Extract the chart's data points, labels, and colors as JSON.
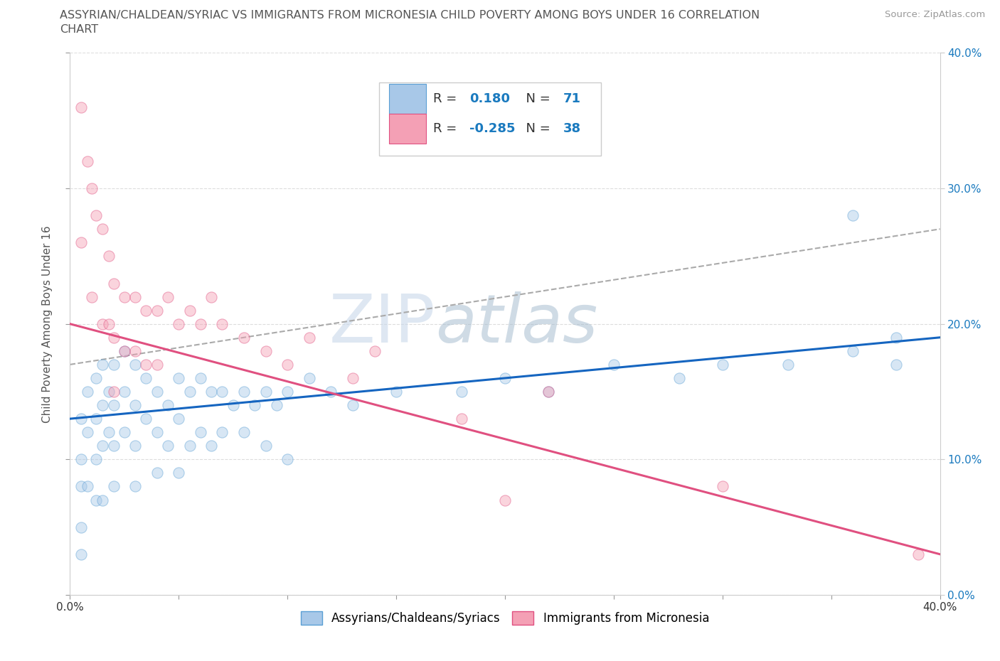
{
  "title_line1": "ASSYRIAN/CHALDEAN/SYRIAC VS IMMIGRANTS FROM MICRONESIA CHILD POVERTY AMONG BOYS UNDER 16 CORRELATION",
  "title_line2": "CHART",
  "source_text": "Source: ZipAtlas.com",
  "ylabel": "Child Poverty Among Boys Under 16",
  "xlim": [
    0.0,
    0.4
  ],
  "ylim": [
    0.0,
    0.4
  ],
  "xticks": [
    0.0,
    0.05,
    0.1,
    0.15,
    0.2,
    0.25,
    0.3,
    0.35,
    0.4
  ],
  "yticks": [
    0.0,
    0.1,
    0.2,
    0.3,
    0.4
  ],
  "xtick_labels_bottom": [
    "0.0%",
    "",
    "",
    "",
    "",
    "",
    "",
    "",
    "40.0%"
  ],
  "ytick_labels_left": [
    "",
    "",
    "",
    "",
    ""
  ],
  "ytick_labels_right": [
    "0.0%",
    "10.0%",
    "20.0%",
    "30.0%",
    "40.0%"
  ],
  "blue_series": {
    "label": "Assyrians/Chaldeans/Syriacs",
    "R": 0.18,
    "N": 71,
    "color": "#a8c8e8",
    "edge_color": "#5a9fd4",
    "x": [
      0.005,
      0.005,
      0.005,
      0.005,
      0.005,
      0.008,
      0.008,
      0.008,
      0.012,
      0.012,
      0.012,
      0.012,
      0.015,
      0.015,
      0.015,
      0.015,
      0.018,
      0.018,
      0.02,
      0.02,
      0.02,
      0.02,
      0.025,
      0.025,
      0.025,
      0.03,
      0.03,
      0.03,
      0.03,
      0.035,
      0.035,
      0.04,
      0.04,
      0.04,
      0.045,
      0.045,
      0.05,
      0.05,
      0.05,
      0.055,
      0.055,
      0.06,
      0.06,
      0.065,
      0.065,
      0.07,
      0.07,
      0.075,
      0.08,
      0.08,
      0.085,
      0.09,
      0.09,
      0.095,
      0.1,
      0.1,
      0.11,
      0.12,
      0.13,
      0.15,
      0.18,
      0.2,
      0.22,
      0.25,
      0.28,
      0.3,
      0.33,
      0.36,
      0.38,
      0.36,
      0.38
    ],
    "y": [
      0.13,
      0.1,
      0.08,
      0.05,
      0.03,
      0.15,
      0.12,
      0.08,
      0.16,
      0.13,
      0.1,
      0.07,
      0.17,
      0.14,
      0.11,
      0.07,
      0.15,
      0.12,
      0.17,
      0.14,
      0.11,
      0.08,
      0.18,
      0.15,
      0.12,
      0.17,
      0.14,
      0.11,
      0.08,
      0.16,
      0.13,
      0.15,
      0.12,
      0.09,
      0.14,
      0.11,
      0.16,
      0.13,
      0.09,
      0.15,
      0.11,
      0.16,
      0.12,
      0.15,
      0.11,
      0.15,
      0.12,
      0.14,
      0.15,
      0.12,
      0.14,
      0.15,
      0.11,
      0.14,
      0.15,
      0.1,
      0.16,
      0.15,
      0.14,
      0.15,
      0.15,
      0.16,
      0.15,
      0.17,
      0.16,
      0.17,
      0.17,
      0.18,
      0.19,
      0.28,
      0.17
    ],
    "trend_x": [
      0.0,
      0.4
    ],
    "trend_y": [
      0.13,
      0.19
    ],
    "trend_color": "#1565C0",
    "dash_trend_y": [
      0.17,
      0.27
    ]
  },
  "pink_series": {
    "label": "Immigrants from Micronesia",
    "R": -0.285,
    "N": 38,
    "color": "#f4a0b5",
    "edge_color": "#e05080",
    "x": [
      0.005,
      0.005,
      0.008,
      0.01,
      0.01,
      0.012,
      0.015,
      0.015,
      0.018,
      0.018,
      0.02,
      0.02,
      0.02,
      0.025,
      0.025,
      0.03,
      0.03,
      0.035,
      0.035,
      0.04,
      0.04,
      0.045,
      0.05,
      0.055,
      0.06,
      0.065,
      0.07,
      0.08,
      0.09,
      0.1,
      0.11,
      0.13,
      0.14,
      0.18,
      0.2,
      0.22,
      0.3,
      0.39
    ],
    "y": [
      0.36,
      0.26,
      0.32,
      0.3,
      0.22,
      0.28,
      0.27,
      0.2,
      0.25,
      0.2,
      0.23,
      0.19,
      0.15,
      0.22,
      0.18,
      0.22,
      0.18,
      0.21,
      0.17,
      0.21,
      0.17,
      0.22,
      0.2,
      0.21,
      0.2,
      0.22,
      0.2,
      0.19,
      0.18,
      0.17,
      0.19,
      0.16,
      0.18,
      0.13,
      0.07,
      0.15,
      0.08,
      0.03
    ],
    "trend_x": [
      0.0,
      0.4
    ],
    "trend_y": [
      0.2,
      0.03
    ],
    "trend_color": "#e05080"
  },
  "watermark_zip": "ZIP",
  "watermark_atlas": "atlas",
  "watermark_color_zip": "#d0d8e8",
  "watermark_color_atlas": "#b0c8d8",
  "background_color": "#ffffff",
  "grid_color": "#dddddd",
  "title_fontsize": 11.5,
  "axis_label_fontsize": 11,
  "tick_fontsize": 11,
  "legend_fontsize": 13,
  "scatter_size": 120,
  "scatter_alpha": 0.45,
  "legend_R_color": "#1a7abf",
  "legend_N_color": "#1a7abf"
}
